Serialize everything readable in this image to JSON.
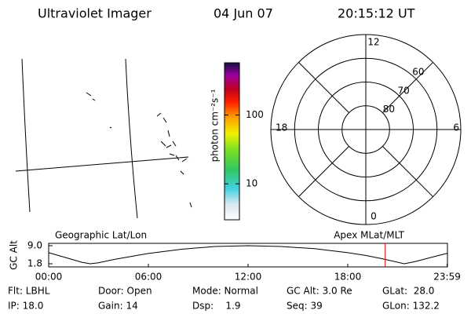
{
  "header": {
    "title": "Ultraviolet Imager",
    "date": "04 Jun 07",
    "time": "20:15:12 UT"
  },
  "colorbar": {
    "label": "photon cm⁻²s⁻¹",
    "log_scale": true,
    "ylim": [
      3,
      575
    ],
    "yticks": [
      10,
      100
    ]
  },
  "polar": {
    "rlim": [
      90,
      50
    ],
    "rings": [
      80,
      70,
      60
    ],
    "mlt_labels": [
      12,
      6,
      0,
      18
    ]
  },
  "altitude_plot": {
    "ylabel": "GC Alt",
    "left_label": "Geographic Lat/Lon",
    "right_label": "Apex MLat/MLT",
    "xlim": [
      0,
      24
    ],
    "ylim": [
      0.55,
      9.94
    ],
    "yticks": [
      {
        "value": 9,
        "label": "9.0"
      },
      1.8
    ],
    "xticks": [
      {
        "value": 0,
        "label": "00:00"
      },
      {
        "value": 6,
        "label": "06:00"
      },
      {
        "value": 12,
        "label": "12:00"
      },
      {
        "value": 18,
        "label": "18:00"
      },
      {
        "value": 23.98,
        "label": "23:59"
      }
    ],
    "x": [
      0,
      1,
      2,
      2.5,
      3,
      4,
      6,
      8,
      10,
      12,
      14,
      16,
      18,
      19,
      20,
      21.4,
      22,
      23,
      24
    ],
    "values": [
      6.2,
      4.3,
      2.4,
      1.8,
      2.2,
      3.6,
      5.9,
      7.6,
      8.7,
      9.0,
      8.7,
      7.8,
      6.2,
      5.2,
      3.9,
      1.8,
      2.6,
      4.3,
      6.0
    ],
    "current_time": 20.253,
    "marker_color": "#e00000"
  },
  "info": {
    "rows": [
      [
        "Flt: LBHL",
        "Door: Open",
        "Mode: Normal",
        "GC Alt: 3.0 Re",
        "GLat:  28.0"
      ],
      [
        "IP: 18.0",
        "Gain: 14",
        "Dsp:    1.9",
        "Seq: 39",
        "GLon: 132.2"
      ]
    ]
  }
}
